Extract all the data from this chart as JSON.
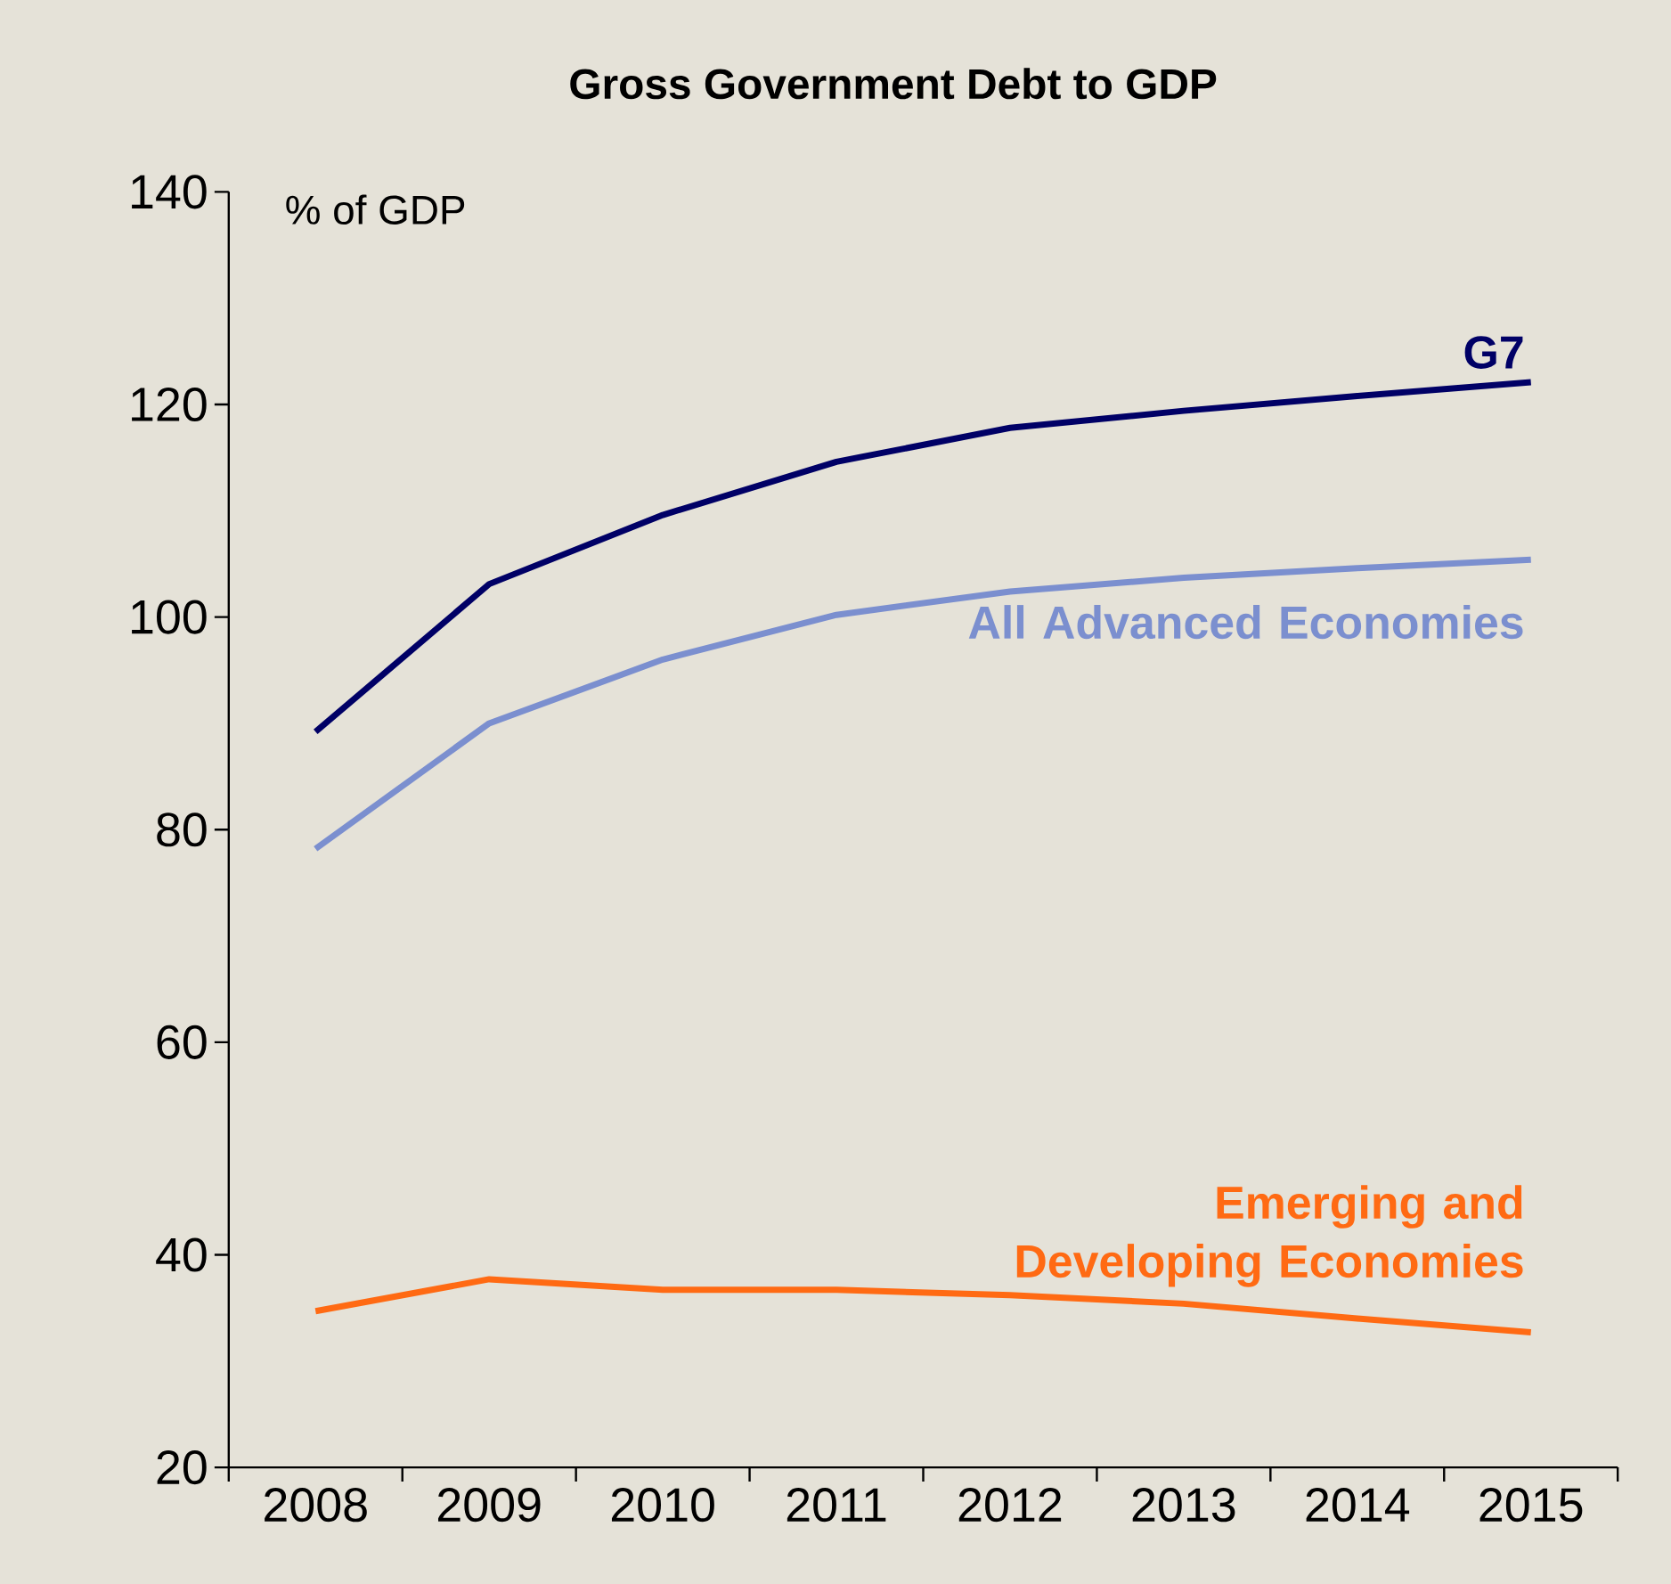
{
  "chart_data": {
    "type": "line",
    "title": "Gross Government Debt to GDP",
    "ylabel": "% of GDP",
    "categories": [
      "2008",
      "2009",
      "2010",
      "2011",
      "2012",
      "2013",
      "2014",
      "2015"
    ],
    "series": [
      {
        "name": "G7",
        "color": "#000066",
        "values": [
          89.2,
          103.1,
          109.6,
          114.6,
          117.8,
          119.4,
          120.8,
          122.1
        ]
      },
      {
        "name": "All Advanced Economies",
        "color": "#7B8FCF",
        "values": [
          78.2,
          90.0,
          96.0,
          100.2,
          102.4,
          103.7,
          104.6,
          105.4
        ]
      },
      {
        "name": "Emerging and Developing Economies",
        "color": "#FF6A13",
        "values": [
          34.7,
          37.7,
          36.7,
          36.7,
          36.2,
          35.4,
          34.0,
          32.7
        ]
      }
    ],
    "ylim": [
      20,
      140
    ],
    "yticks": [
      20,
      40,
      60,
      80,
      100,
      120,
      140
    ],
    "grid": false,
    "legend": false,
    "marker": "none",
    "line_style": "solid"
  }
}
